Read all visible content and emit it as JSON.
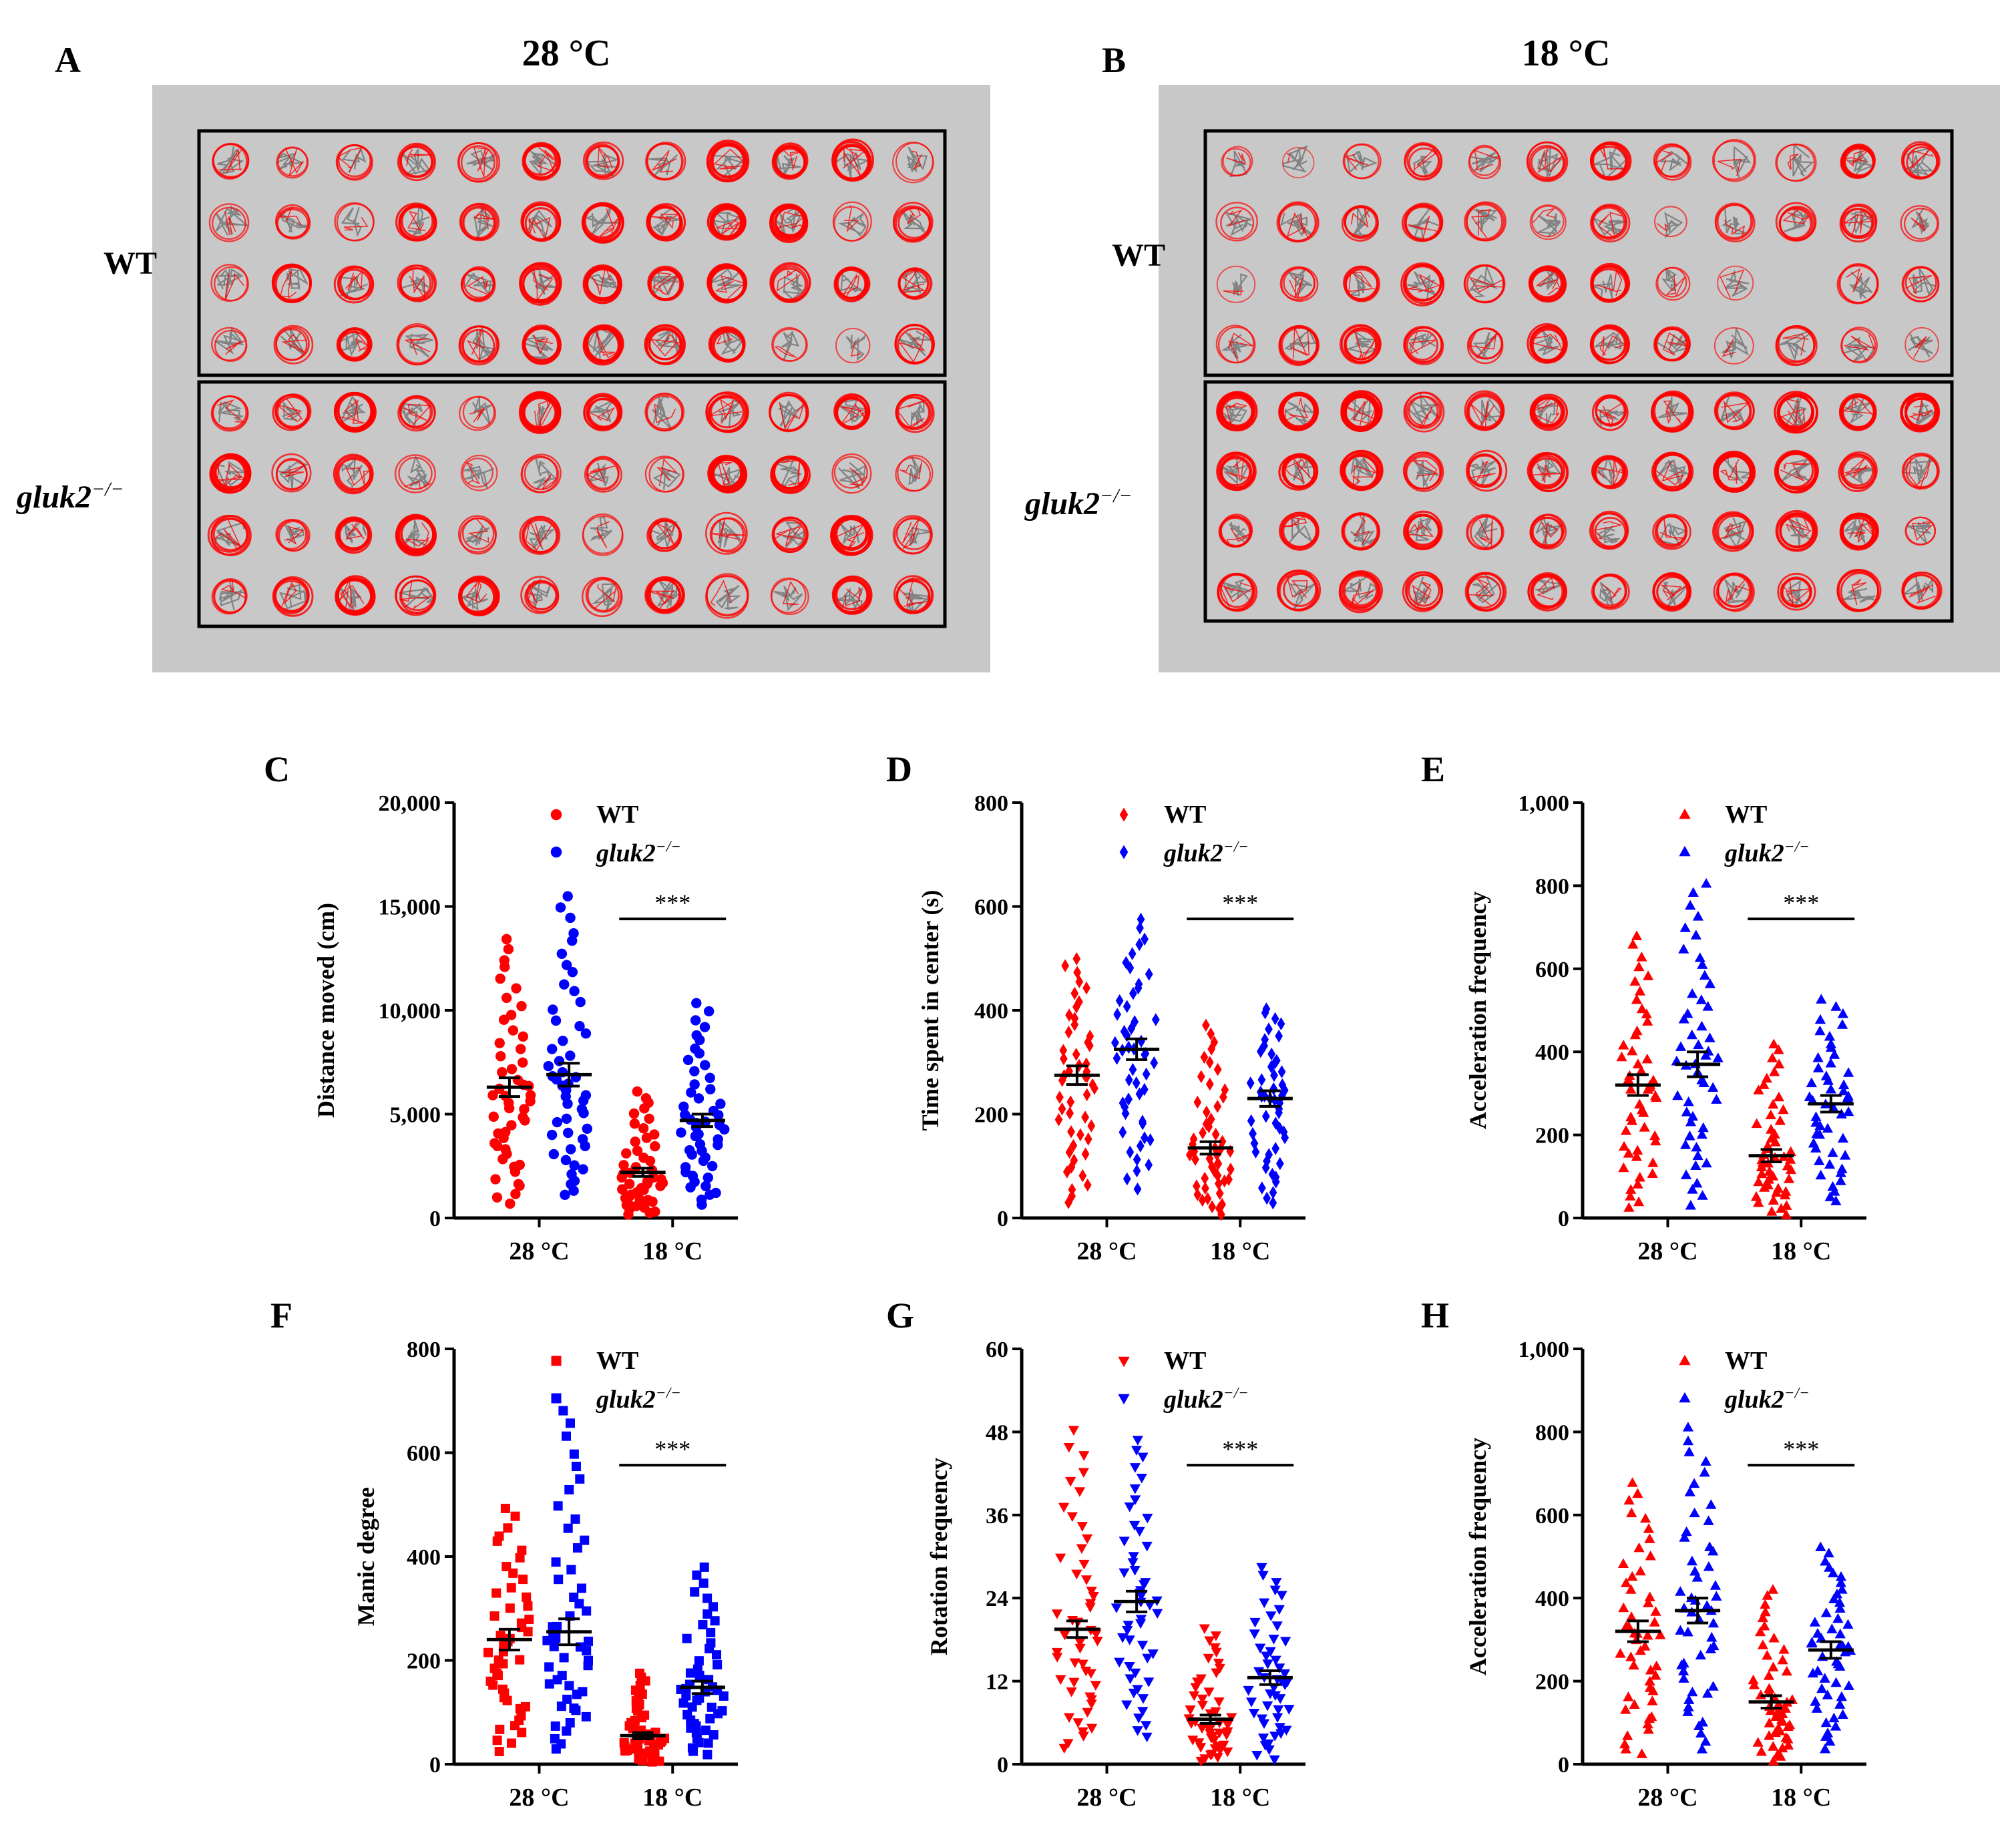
{
  "colors": {
    "wt": "#ff0000",
    "ko": "#0000ff",
    "panel_bg": "#c8c8c8",
    "track_gray": "#7a7a7a",
    "axis": "#000000"
  },
  "top_panels": [
    {
      "letter": "A",
      "title": "28 °C",
      "wt_label": "WT",
      "ko_label": "gluk2⁻/⁻",
      "intensity": [
        [
          0.45,
          0.35,
          0.45,
          0.55,
          0.45,
          0.7,
          0.5,
          0.45,
          0.75,
          0.7,
          0.75,
          0.25
        ],
        [
          0.35,
          0.45,
          0.35,
          0.7,
          0.55,
          0.65,
          0.75,
          0.7,
          0.85,
          0.85,
          0.3,
          0.55
        ],
        [
          0.35,
          0.7,
          0.6,
          0.55,
          0.5,
          0.7,
          0.85,
          0.65,
          0.8,
          0.6,
          0.7,
          0.5
        ],
        [
          0.35,
          0.45,
          0.75,
          0.4,
          0.55,
          0.7,
          0.85,
          0.7,
          0.7,
          0.3,
          0.2,
          0.55
        ],
        [
          0.4,
          0.6,
          0.9,
          0.5,
          0.3,
          0.9,
          0.7,
          0.4,
          0.65,
          0.55,
          0.75,
          0.55
        ],
        [
          0.85,
          0.45,
          0.6,
          0.35,
          0.25,
          0.4,
          0.45,
          0.35,
          0.95,
          0.8,
          0.35,
          0.3
        ],
        [
          0.6,
          0.45,
          0.7,
          0.85,
          0.4,
          0.5,
          0.3,
          0.55,
          0.45,
          0.55,
          0.85,
          0.45
        ],
        [
          0.45,
          0.6,
          0.8,
          0.55,
          0.85,
          0.5,
          0.45,
          0.7,
          0.4,
          0.3,
          0.7,
          0.6
        ]
      ]
    },
    {
      "letter": "B",
      "title": "18 °C",
      "wt_label": "WT",
      "ko_label": "gluk2⁻/⁻",
      "intensity": [
        [
          0.25,
          0.05,
          0.35,
          0.5,
          0.35,
          0.5,
          0.65,
          0.45,
          0.35,
          0.3,
          0.75,
          0.55
        ],
        [
          0.35,
          0.45,
          0.5,
          0.6,
          0.45,
          0.25,
          0.5,
          0.2,
          0.45,
          0.55,
          0.6,
          0.35
        ],
        [
          0.15,
          0.4,
          0.55,
          0.65,
          0.45,
          0.75,
          0.7,
          0.3,
          0.15,
          0.0,
          0.4,
          0.45
        ],
        [
          0.35,
          0.55,
          0.65,
          0.55,
          0.45,
          0.7,
          0.65,
          0.6,
          0.2,
          0.5,
          0.35,
          0.15
        ],
        [
          0.85,
          0.85,
          0.95,
          0.5,
          0.6,
          0.75,
          0.6,
          0.75,
          0.55,
          0.8,
          0.75,
          0.85
        ],
        [
          0.75,
          0.75,
          0.8,
          0.5,
          0.55,
          0.7,
          0.65,
          0.7,
          0.85,
          0.75,
          0.6,
          0.45
        ],
        [
          0.5,
          0.6,
          0.55,
          0.7,
          0.45,
          0.55,
          0.55,
          0.5,
          0.6,
          0.7,
          0.8,
          0.3
        ],
        [
          0.6,
          0.6,
          0.65,
          0.6,
          0.55,
          0.65,
          0.5,
          0.7,
          0.55,
          0.55,
          0.6,
          0.5
        ]
      ]
    }
  ],
  "chart_data": [
    {
      "letter": "C",
      "type": "scatter",
      "marker": "circle",
      "ylabel": "Distance moved (cm)",
      "ylim": [
        0,
        20000
      ],
      "yticks": [
        0,
        5000,
        10000,
        15000,
        20000
      ],
      "ytick_labels": [
        "0",
        "5,000",
        "10,000",
        "15,000",
        "20,000"
      ],
      "categories": [
        "28 °C",
        "18 °C"
      ],
      "legend": [
        "WT",
        "gluk2⁻/⁻"
      ],
      "significance": "***",
      "groups": [
        {
          "series": "WT",
          "category": "28 °C",
          "mean": 6300,
          "sem": 450,
          "min": 500,
          "max": 13700,
          "n": 50,
          "center": 5800
        },
        {
          "series": "gluk2⁻/⁻",
          "category": "28 °C",
          "mean": 6900,
          "sem": 550,
          "min": 800,
          "max": 15800,
          "n": 50,
          "center": 6500
        },
        {
          "series": "WT",
          "category": "18 °C",
          "mean": 2200,
          "sem": 200,
          "min": 100,
          "max": 6200,
          "n": 50,
          "center": 1800
        },
        {
          "series": "gluk2⁻/⁻",
          "category": "18 °C",
          "mean": 4700,
          "sem": 300,
          "min": 500,
          "max": 10500,
          "n": 50,
          "center": 4500
        }
      ]
    },
    {
      "letter": "D",
      "type": "scatter",
      "marker": "diamond",
      "ylabel": "Time spent in center (s)",
      "ylim": [
        0,
        800
      ],
      "yticks": [
        0,
        200,
        400,
        600,
        800
      ],
      "ytick_labels": [
        "0",
        "200",
        "400",
        "600",
        "800"
      ],
      "categories": [
        "28 °C",
        "18 °C"
      ],
      "legend": [
        "WT",
        "gluk2⁻/⁻"
      ],
      "significance": "***",
      "groups": [
        {
          "series": "WT",
          "category": "28 °C",
          "mean": 275,
          "sem": 18,
          "min": 20,
          "max": 510,
          "n": 50,
          "center": 270
        },
        {
          "series": "gluk2⁻/⁻",
          "category": "28 °C",
          "mean": 325,
          "sem": 20,
          "min": 50,
          "max": 580,
          "n": 50,
          "center": 320
        },
        {
          "series": "WT",
          "category": "18 °C",
          "mean": 135,
          "sem": 12,
          "min": 5,
          "max": 380,
          "n": 50,
          "center": 130
        },
        {
          "series": "gluk2⁻/⁻",
          "category": "18 °C",
          "mean": 230,
          "sem": 15,
          "min": 20,
          "max": 410,
          "n": 50,
          "center": 230
        }
      ]
    },
    {
      "letter": "E",
      "type": "scatter",
      "marker": "triangle",
      "ylabel": "Acceleration frequency",
      "ylim": [
        0,
        1000
      ],
      "yticks": [
        0,
        200,
        400,
        600,
        800,
        1000
      ],
      "ytick_labels": [
        "0",
        "200",
        "400",
        "600",
        "800",
        "1,000"
      ],
      "categories": [
        "28 °C",
        "18 °C"
      ],
      "legend": [
        "WT",
        "gluk2⁻/⁻"
      ],
      "significance": "***",
      "groups": [
        {
          "series": "WT",
          "category": "28 °C",
          "mean": 320,
          "sem": 25,
          "min": 10,
          "max": 690,
          "n": 50,
          "center": 310
        },
        {
          "series": "gluk2⁻/⁻",
          "category": "28 °C",
          "mean": 370,
          "sem": 30,
          "min": 20,
          "max": 820,
          "n": 50,
          "center": 380
        },
        {
          "series": "WT",
          "category": "18 °C",
          "mean": 150,
          "sem": 15,
          "min": 5,
          "max": 430,
          "n": 50,
          "center": 140
        },
        {
          "series": "gluk2⁻/⁻",
          "category": "18 °C",
          "mean": 275,
          "sem": 20,
          "min": 30,
          "max": 530,
          "n": 50,
          "center": 280
        }
      ]
    },
    {
      "letter": "F",
      "type": "scatter",
      "marker": "square",
      "ylabel": "Manic degree",
      "ylim": [
        0,
        800
      ],
      "yticks": [
        0,
        200,
        400,
        600,
        800
      ],
      "ytick_labels": [
        "0",
        "200",
        "400",
        "600",
        "800"
      ],
      "categories": [
        "28 °C",
        "18 °C"
      ],
      "legend": [
        "WT",
        "gluk2⁻/⁻"
      ],
      "significance": "***",
      "groups": [
        {
          "series": "WT",
          "category": "28 °C",
          "mean": 240,
          "sem": 20,
          "min": 20,
          "max": 500,
          "n": 50,
          "center": 230
        },
        {
          "series": "gluk2⁻/⁻",
          "category": "28 °C",
          "mean": 255,
          "sem": 25,
          "min": 20,
          "max": 700,
          "n": 50,
          "center": 240
        },
        {
          "series": "WT",
          "category": "18 °C",
          "mean": 55,
          "sem": 6,
          "min": 2,
          "max": 180,
          "n": 50,
          "center": 45
        },
        {
          "series": "gluk2⁻/⁻",
          "category": "18 °C",
          "mean": 148,
          "sem": 12,
          "min": 15,
          "max": 385,
          "n": 50,
          "center": 140
        }
      ]
    },
    {
      "letter": "G",
      "type": "scatter",
      "marker": "triangle-down",
      "ylabel": "Rotation frequency",
      "ylim": [
        0,
        60
      ],
      "yticks": [
        0,
        12,
        24,
        36,
        48,
        60
      ],
      "ytick_labels": [
        "0",
        "12",
        "24",
        "36",
        "48",
        "60"
      ],
      "categories": [
        "28 °C",
        "18 °C"
      ],
      "legend": [
        "WT",
        "gluk2⁻/⁻"
      ],
      "significance": "***",
      "groups": [
        {
          "series": "WT",
          "category": "28 °C",
          "mean": 19.5,
          "sem": 1.2,
          "min": 1.5,
          "max": 49,
          "n": 50,
          "center": 19
        },
        {
          "series": "gluk2⁻/⁻",
          "category": "28 °C",
          "mean": 23.5,
          "sem": 1.5,
          "min": 3,
          "max": 48,
          "n": 50,
          "center": 23
        },
        {
          "series": "WT",
          "category": "18 °C",
          "mean": 6.5,
          "sem": 0.6,
          "min": 0.2,
          "max": 20,
          "n": 50,
          "center": 6
        },
        {
          "series": "gluk2⁻/⁻",
          "category": "18 °C",
          "mean": 12.5,
          "sem": 1.0,
          "min": 0.5,
          "max": 29,
          "n": 50,
          "center": 12
        }
      ]
    },
    {
      "letter": "H",
      "type": "scatter",
      "marker": "triangle",
      "ylabel": "Acceleration frequency",
      "ylim": [
        0,
        1000
      ],
      "yticks": [
        0,
        200,
        400,
        600,
        800,
        1000
      ],
      "ytick_labels": [
        "0",
        "200",
        "400",
        "600",
        "800",
        "1,000"
      ],
      "categories": [
        "28 °C",
        "18 °C"
      ],
      "legend": [
        "WT",
        "gluk2⁻/⁻"
      ],
      "significance": "***",
      "groups": [
        {
          "series": "WT",
          "category": "28 °C",
          "mean": 320,
          "sem": 25,
          "min": 10,
          "max": 690,
          "n": 50,
          "center": 310
        },
        {
          "series": "gluk2⁻/⁻",
          "category": "28 °C",
          "mean": 370,
          "sem": 30,
          "min": 20,
          "max": 820,
          "n": 50,
          "center": 380
        },
        {
          "series": "WT",
          "category": "18 °C",
          "mean": 150,
          "sem": 15,
          "min": 5,
          "max": 430,
          "n": 50,
          "center": 140
        },
        {
          "series": "gluk2⁻/⁻",
          "category": "18 °C",
          "mean": 275,
          "sem": 20,
          "min": 30,
          "max": 530,
          "n": 50,
          "center": 280
        }
      ]
    }
  ]
}
